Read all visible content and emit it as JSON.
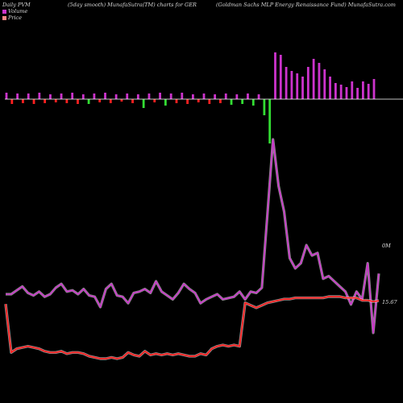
{
  "header": {
    "left": "Daily PVM",
    "center": "(5day smooth) MunafaSutra(TM) charts for GER",
    "right": "(Goldman  Sachs MLP Energy Renaissance  Fund) MunafaSutra.com"
  },
  "legend": [
    {
      "label": "Volume",
      "color": "#cc33cc"
    },
    {
      "label": "Price",
      "color": "#ff8888"
    }
  ],
  "colors": {
    "background": "#000000",
    "volume_line": "#cc33cc",
    "price_line": "#ff2020",
    "bar_up": "#cc33cc",
    "bar_down_red": "#ff2020",
    "bar_down_green": "#33dd33",
    "baseline": "#ffffff"
  },
  "chart_data": {
    "type": "line",
    "label_volume_end": "0M",
    "label_price_end": "15.67",
    "volume_series": [
      0.0,
      0.0,
      1.5,
      3.0,
      0.5,
      -0.5,
      1.0,
      -1.0,
      0.0,
      2.5,
      4.0,
      1.0,
      1.5,
      0.0,
      2.0,
      -0.5,
      -1.0,
      -5.0,
      2.0,
      4.0,
      -0.5,
      -1.0,
      -3.5,
      0.5,
      1.0,
      2.0,
      0.5,
      5.0,
      1.0,
      -0.5,
      -2.0,
      0.5,
      4.0,
      2.0,
      0.5,
      -3.5,
      -2.0,
      -1.0,
      0.0,
      -2.0,
      -1.5,
      -1.0,
      1.0,
      -2.0,
      1.0,
      0.5,
      2.5,
      31.0,
      60.0,
      42.0,
      32.0,
      14.0,
      10.0,
      12.0,
      19.0,
      15.0,
      16.0,
      6.0,
      7.0,
      5.0,
      3.0,
      1.0,
      -4.0,
      1.0,
      -2.0,
      12.0,
      -15.0,
      8.0
    ],
    "price_series": [
      15.4,
      11.5,
      11.8,
      11.9,
      12.0,
      11.9,
      11.8,
      11.6,
      11.5,
      11.5,
      11.6,
      11.4,
      11.5,
      11.5,
      11.4,
      11.2,
      11.1,
      11.0,
      11.0,
      11.1,
      11.0,
      11.1,
      11.5,
      11.3,
      11.2,
      11.6,
      11.3,
      11.4,
      11.3,
      11.4,
      11.3,
      11.4,
      11.3,
      11.2,
      11.2,
      11.4,
      11.3,
      11.8,
      12.0,
      12.1,
      12.0,
      12.1,
      12.0,
      15.5,
      15.3,
      15.1,
      15.3,
      15.5,
      15.6,
      15.7,
      15.8,
      15.8,
      15.9,
      15.9,
      15.9,
      15.9,
      15.9,
      15.9,
      16.0,
      16.0,
      16.0,
      15.9,
      15.9,
      15.9,
      15.7,
      15.7,
      15.6,
      15.67
    ],
    "volume_bars": [
      {
        "v": 8,
        "c": "up"
      },
      {
        "v": -6,
        "c": "red"
      },
      {
        "v": 7,
        "c": "up"
      },
      {
        "v": -5,
        "c": "red"
      },
      {
        "v": 7,
        "c": "up"
      },
      {
        "v": -6,
        "c": "red"
      },
      {
        "v": 8,
        "c": "up"
      },
      {
        "v": -5,
        "c": "red"
      },
      {
        "v": 6,
        "c": "up"
      },
      {
        "v": -4,
        "c": "red"
      },
      {
        "v": 7,
        "c": "up"
      },
      {
        "v": -5,
        "c": "red"
      },
      {
        "v": 8,
        "c": "up"
      },
      {
        "v": -6,
        "c": "red"
      },
      {
        "v": 6,
        "c": "up"
      },
      {
        "v": -6,
        "c": "green"
      },
      {
        "v": 7,
        "c": "up"
      },
      {
        "v": -4,
        "c": "red"
      },
      {
        "v": 8,
        "c": "up"
      },
      {
        "v": -5,
        "c": "red"
      },
      {
        "v": 6,
        "c": "up"
      },
      {
        "v": -3,
        "c": "red"
      },
      {
        "v": 7,
        "c": "up"
      },
      {
        "v": -5,
        "c": "red"
      },
      {
        "v": 6,
        "c": "up"
      },
      {
        "v": -11,
        "c": "green"
      },
      {
        "v": 7,
        "c": "up"
      },
      {
        "v": -4,
        "c": "red"
      },
      {
        "v": 8,
        "c": "up"
      },
      {
        "v": -8,
        "c": "green"
      },
      {
        "v": 7,
        "c": "up"
      },
      {
        "v": -5,
        "c": "red"
      },
      {
        "v": 8,
        "c": "up"
      },
      {
        "v": -6,
        "c": "red"
      },
      {
        "v": 6,
        "c": "up"
      },
      {
        "v": -4,
        "c": "red"
      },
      {
        "v": 7,
        "c": "up"
      },
      {
        "v": -6,
        "c": "red"
      },
      {
        "v": 6,
        "c": "up"
      },
      {
        "v": -5,
        "c": "red"
      },
      {
        "v": 7,
        "c": "up"
      },
      {
        "v": -7,
        "c": "green"
      },
      {
        "v": 6,
        "c": "up"
      },
      {
        "v": -6,
        "c": "green"
      },
      {
        "v": 7,
        "c": "up"
      },
      {
        "v": -8,
        "c": "green"
      },
      {
        "v": 6,
        "c": "up"
      },
      {
        "v": -20,
        "c": "green"
      },
      {
        "v": -55,
        "c": "green"
      },
      {
        "v": 58,
        "c": "up"
      },
      {
        "v": 55,
        "c": "up"
      },
      {
        "v": 40,
        "c": "up"
      },
      {
        "v": 35,
        "c": "up"
      },
      {
        "v": 32,
        "c": "up"
      },
      {
        "v": 28,
        "c": "up"
      },
      {
        "v": 40,
        "c": "up"
      },
      {
        "v": 50,
        "c": "up"
      },
      {
        "v": 45,
        "c": "up"
      },
      {
        "v": 37,
        "c": "up"
      },
      {
        "v": 28,
        "c": "up"
      },
      {
        "v": 20,
        "c": "up"
      },
      {
        "v": 18,
        "c": "up"
      },
      {
        "v": 15,
        "c": "up"
      },
      {
        "v": 22,
        "c": "up"
      },
      {
        "v": 14,
        "c": "up"
      },
      {
        "v": 22,
        "c": "up"
      },
      {
        "v": 19,
        "c": "up"
      },
      {
        "v": 25,
        "c": "up"
      }
    ]
  }
}
